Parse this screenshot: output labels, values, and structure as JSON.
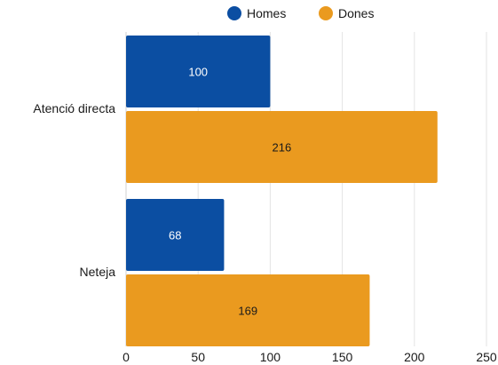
{
  "chart_data": {
    "type": "bar",
    "orientation": "horizontal",
    "categories": [
      "Atenció directa",
      "Neteja"
    ],
    "series": [
      {
        "name": "Homes",
        "values": [
          100,
          68
        ],
        "color": "#0b4ea2",
        "label_color": "#ffffff"
      },
      {
        "name": "Dones",
        "values": [
          216,
          169
        ],
        "color": "#ea9a1f",
        "label_color": "#1a1a1a"
      }
    ],
    "xlim": [
      0,
      250
    ],
    "xticks": [
      0,
      50,
      100,
      150,
      200,
      250
    ],
    "grid": true,
    "legend_position": "top-center",
    "title": "",
    "xlabel": "",
    "ylabel": ""
  }
}
